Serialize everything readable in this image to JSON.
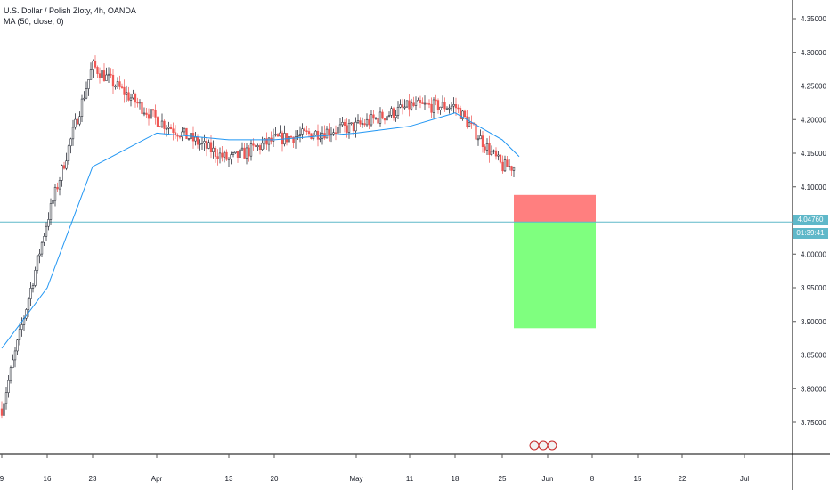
{
  "legend": {
    "symbol_line": "U.S. Dollar / Polish Zloty, 4h, OANDA",
    "ma_line": "MA (50, close, 0)"
  },
  "price_tag": {
    "price": "4.04760",
    "countdown": "01:39:41"
  },
  "colors": {
    "up": "#26a69a",
    "down": "#ef5350",
    "candle_up_dark": "#131722",
    "ma": "#2196f3",
    "last_price_line": "#5fb8c9",
    "stop_zone": "#ff7f7f",
    "target_zone": "#7fff7f",
    "grid_axis": "#000000"
  },
  "chart_data": {
    "type": "line",
    "title": "U.S. Dollar / Polish Zloty, 4h, OANDA",
    "ylim": [
      3.705,
      4.375
    ],
    "y_ticks": [
      "4.35000",
      "4.30000",
      "4.25000",
      "4.20000",
      "4.15000",
      "4.10000",
      "4.05000",
      "4.00000",
      "3.95000",
      "3.90000",
      "3.85000",
      "3.80000",
      "3.75000"
    ],
    "x_ticks": [
      "9",
      "16",
      "23",
      "Apr",
      "13",
      "20",
      "May",
      "11",
      "18",
      "25",
      "Jun",
      "8",
      "15",
      "22",
      "Jul"
    ],
    "series": [
      {
        "name": "USD/PLN close (approx.)",
        "x": [
          "9",
          "16",
          "23",
          "Apr",
          "13",
          "20",
          "May",
          "11",
          "18",
          "25"
        ],
        "values": [
          3.77,
          4.05,
          4.28,
          4.2,
          4.14,
          4.17,
          4.19,
          4.22,
          4.22,
          4.13
        ]
      },
      {
        "name": "MA (50, close, 0)",
        "x": [
          "9",
          "16",
          "23",
          "Apr",
          "13",
          "20",
          "May",
          "11",
          "18",
          "25"
        ],
        "values": [
          3.86,
          3.95,
          4.13,
          4.18,
          4.17,
          4.17,
          4.18,
          4.19,
          4.21,
          4.17
        ]
      }
    ],
    "last_price": 4.0476,
    "position_box": {
      "entry": 4.0476,
      "stop": 4.088,
      "target": 3.89
    }
  }
}
